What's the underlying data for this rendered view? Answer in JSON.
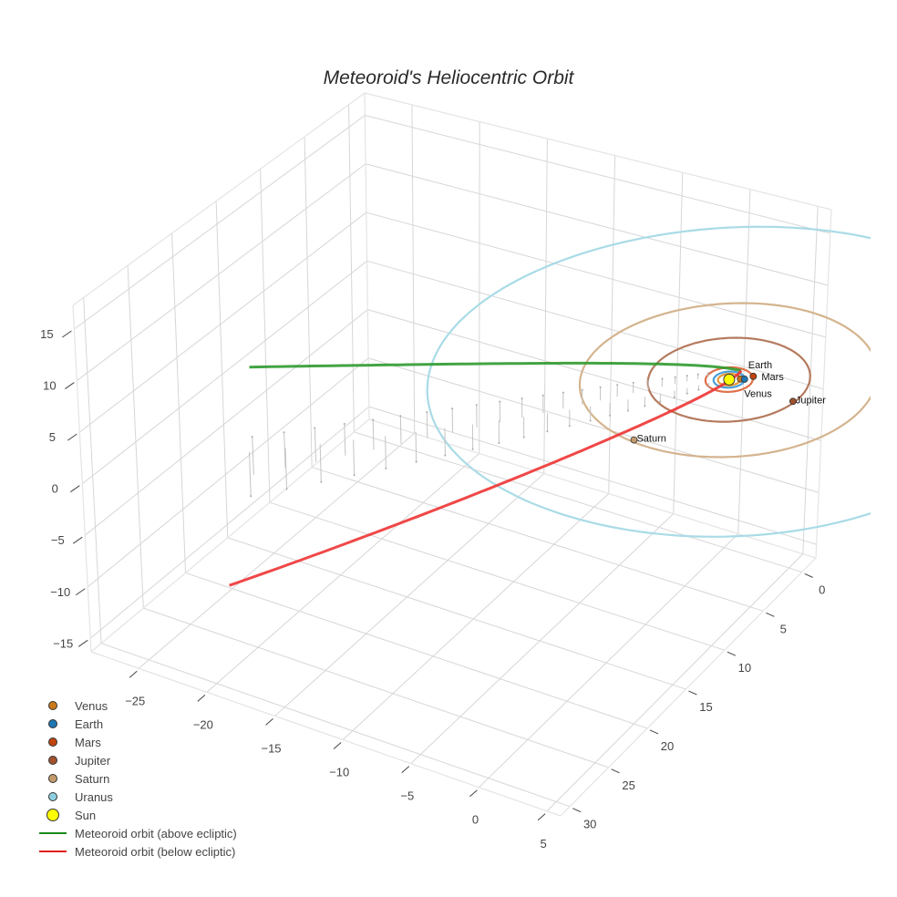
{
  "chart_data": {
    "type": "scatter3d",
    "title": "Meteoroid's Heliocentric Orbit",
    "axes": {
      "x": {
        "range": [
          -28.5,
          6.0
        ],
        "ticks": [
          -25,
          -20,
          -15,
          -10,
          -5,
          0,
          5
        ],
        "tick_labels": [
          "−25",
          "−20",
          "−15",
          "−10",
          "−5",
          "0",
          "5"
        ]
      },
      "y": {
        "range": [
          -1.8,
          31.2
        ],
        "ticks": [
          0,
          5,
          10,
          15,
          20,
          25,
          30
        ],
        "tick_labels": [
          "0",
          "5",
          "10",
          "15",
          "20",
          "25",
          "30"
        ]
      },
      "z": {
        "range": [
          -16.3,
          17.3
        ],
        "ticks": [
          -15,
          -10,
          -5,
          0,
          5,
          10,
          15
        ],
        "tick_labels": [
          "−15",
          "−10",
          "−5",
          "0",
          "5",
          "10",
          "15"
        ]
      },
      "grid": true
    },
    "orbits": [
      {
        "name": "Venus",
        "radius_au": 0.72,
        "color": "#e39a3b"
      },
      {
        "name": "Earth",
        "radius_au": 1.0,
        "color": "#4a9fd8"
      },
      {
        "name": "Mars",
        "radius_au": 1.52,
        "color": "#e0704a"
      },
      {
        "name": "Jupiter",
        "radius_au": 5.2,
        "color": "#b57a5e"
      },
      {
        "name": "Saturn",
        "radius_au": 9.54,
        "color": "#d4b48e"
      },
      {
        "name": "Uranus",
        "radius_au": 19.2,
        "color": "#a9dbe6"
      }
    ],
    "planets": [
      {
        "name": "Venus",
        "x": 0.6,
        "y": -0.4,
        "z": 0,
        "color": "#c9781a",
        "label": "Venus"
      },
      {
        "name": "Earth",
        "x": 0.85,
        "y": -0.5,
        "z": 0,
        "color": "#1f77b4",
        "label": "Earth"
      },
      {
        "name": "Mars",
        "x": 1.16,
        "y": -1.06,
        "z": 0,
        "color": "#c1440e",
        "label": "Mars"
      },
      {
        "name": "Jupiter",
        "x": 5.06,
        "y": 0.4,
        "z": 0,
        "color": "#a0522d",
        "label": "Jupiter"
      },
      {
        "name": "Saturn",
        "x": -1.44,
        "y": 9.21,
        "z": 0,
        "color": "#c49a6c",
        "label": "Saturn"
      }
    ],
    "sun": {
      "name": "Sun",
      "x": 0,
      "y": 0,
      "z": 0,
      "color": "#ffff00"
    },
    "meteoroid": {
      "above": {
        "name": "Meteoroid orbit (above ecliptic)",
        "color": "#2e9a2e",
        "start": [
          -18.7,
          26.7,
          12
        ],
        "control": [
          -2.6,
          2.2,
          3
        ],
        "end": [
          0.1,
          -1.3,
          0
        ]
      },
      "below": {
        "name": "Meteoroid orbit (below ecliptic)",
        "color": "#ee3333",
        "start": [
          0.1,
          -1.3,
          0
        ],
        "control": [
          0.36,
          1.4,
          -1
        ],
        "end": [
          -24.5,
          21.1,
          -15
        ]
      }
    },
    "legend": {
      "position": "bottom-left",
      "items": [
        {
          "label": "Venus",
          "kind": "marker",
          "color": "#c9781a"
        },
        {
          "label": "Earth",
          "kind": "marker",
          "color": "#1f77b4"
        },
        {
          "label": "Mars",
          "kind": "marker",
          "color": "#c1440e"
        },
        {
          "label": "Jupiter",
          "kind": "marker",
          "color": "#a0522d"
        },
        {
          "label": "Saturn",
          "kind": "marker",
          "color": "#c49a6c"
        },
        {
          "label": "Uranus",
          "kind": "marker",
          "color": "#8ecfe0"
        },
        {
          "label": "Sun",
          "kind": "sun",
          "color": "#ffff00"
        },
        {
          "label": "Meteoroid orbit (above ecliptic)",
          "kind": "line",
          "color": "#1a8a1a"
        },
        {
          "label": "Meteoroid orbit (below ecliptic)",
          "kind": "line",
          "color": "#e02020"
        }
      ]
    }
  }
}
